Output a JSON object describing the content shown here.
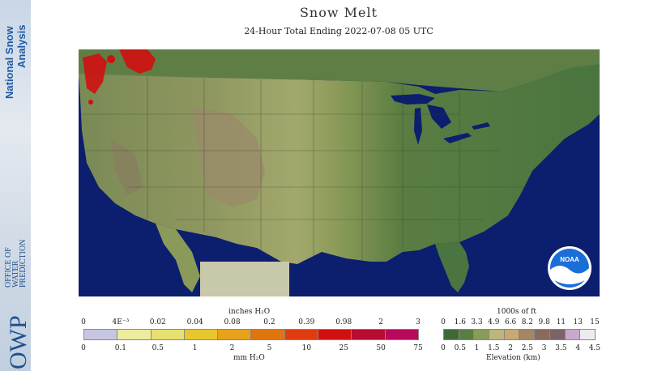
{
  "header": {
    "title": "Snow Melt",
    "subtitle": "24-Hour Total Ending 2022-07-08 05 UTC"
  },
  "sidebar": {
    "top_logo_text": [
      "National Snow",
      "Analysis"
    ],
    "bottom_logo_lines": [
      "OFFICE OF",
      "WATER",
      "PREDICTION"
    ],
    "bottom_logo_abbrev": "OWP"
  },
  "noaa_logo_text": "NOAA",
  "melt_scale": {
    "top_title": "inches H₂O",
    "bottom_title": "mm H₂O",
    "top_ticks": [
      "0",
      "4E⁻³",
      "0.02",
      "0.04",
      "0.08",
      "0.2",
      "0.39",
      "0.98",
      "2",
      "3"
    ],
    "bottom_ticks": [
      "0",
      "0.1",
      "0.5",
      "1",
      "2",
      "5",
      "10",
      "25",
      "50",
      "75"
    ],
    "colors": [
      "#c6c6e0",
      "#ecec9e",
      "#e6e070",
      "#e8c72c",
      "#e6a21c",
      "#e07510",
      "#e03c10",
      "#d01010",
      "#b80c30",
      "#b80a5c"
    ]
  },
  "elevation_scale": {
    "top_title": "1000s of ft",
    "bottom_title": "Elevation (km)",
    "top_ticks": [
      "0",
      "1.6",
      "3.3",
      "4.9",
      "6.6",
      "8.2",
      "9.8",
      "11",
      "13",
      "15"
    ],
    "bottom_ticks": [
      "0",
      "0.5",
      "1",
      "1.5",
      "2",
      "2.5",
      "3",
      "3.5",
      "4",
      "4.5"
    ],
    "colors": [
      "#3e6a3a",
      "#5a7d42",
      "#8a9a58",
      "#bdb57a",
      "#c9a875",
      "#a68662",
      "#8a6a5a",
      "#7a6468",
      "#c9a8cc",
      "#ececf0"
    ]
  },
  "map_colors": {
    "ocean": "#0c1e6e",
    "land_lowland": "#3e6a3a",
    "land_midland": "#8a9a58",
    "land_plains": "#a4a86c",
    "land_highland": "#9a8a6a",
    "snowmelt": "#d01010",
    "lakes": "#0c1e6e",
    "mexico_gray": "#c8c8aa"
  }
}
